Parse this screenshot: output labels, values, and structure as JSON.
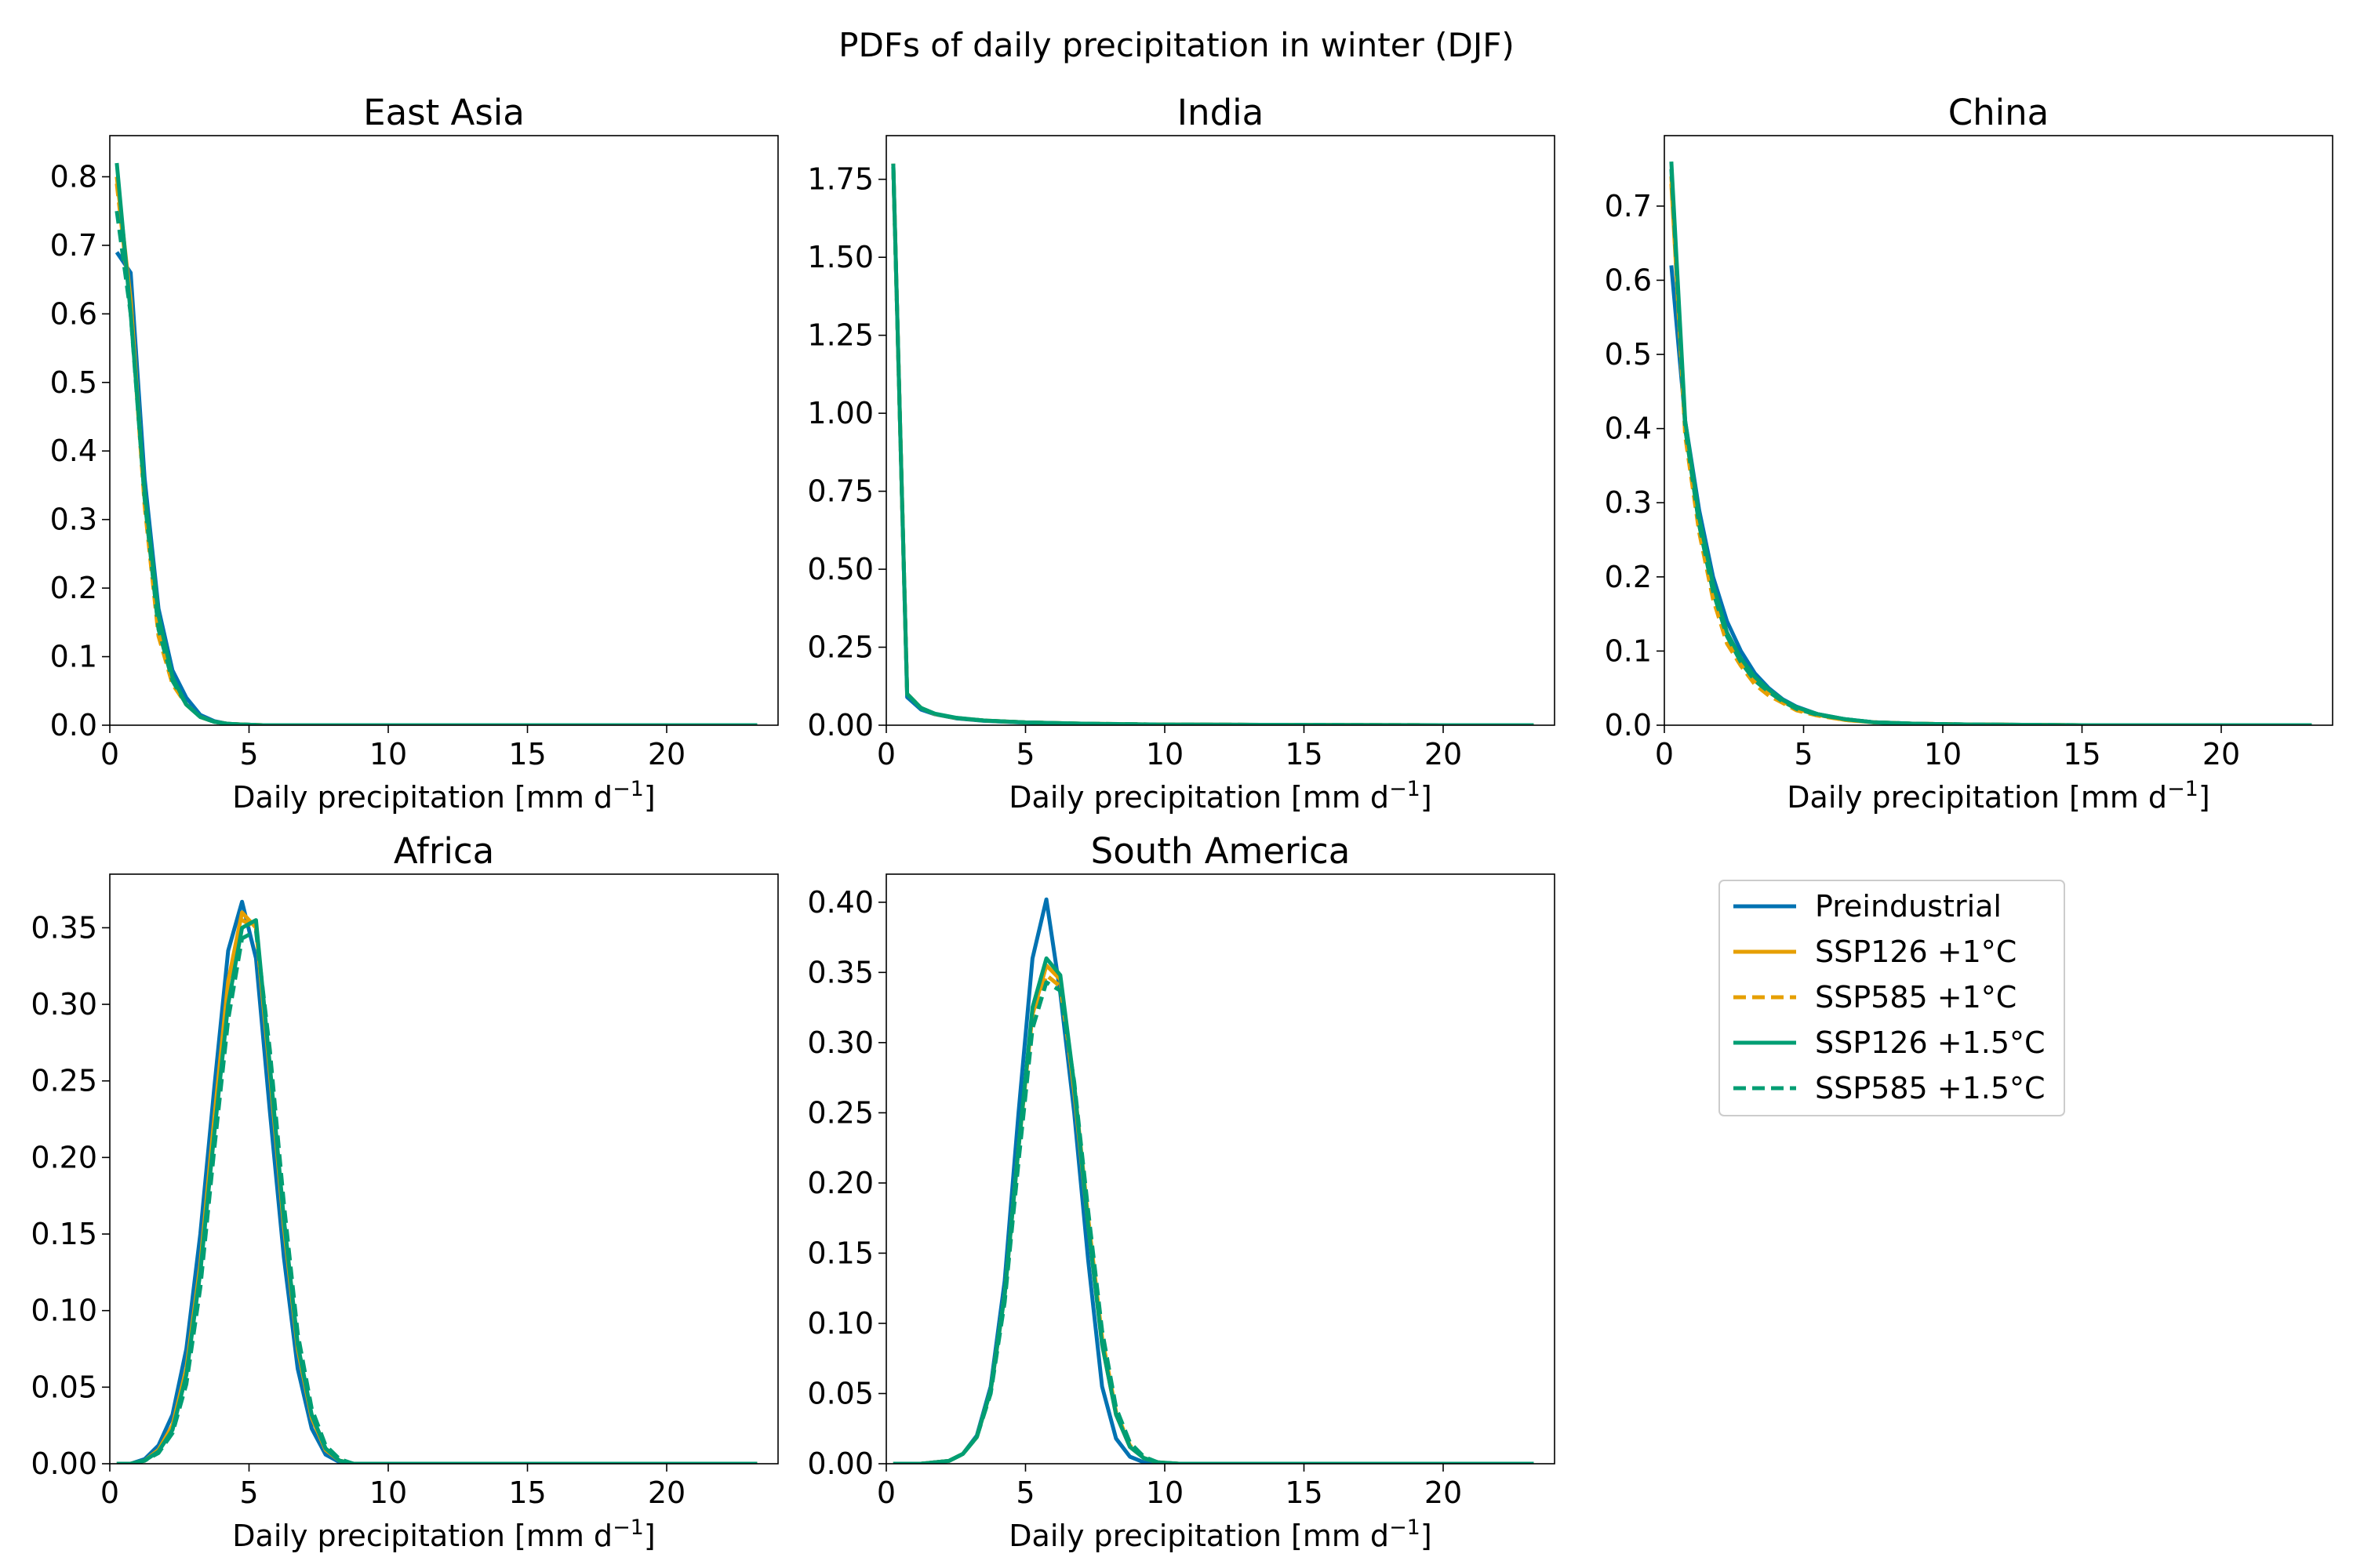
{
  "figure_title": "PDFs of daily precipitation in winter (DJF)",
  "legend": [
    {
      "name": "Preindustrial",
      "color": "#0072B2",
      "dash": "solid"
    },
    {
      "name": "SSP126 +1°C",
      "color": "#E69F00",
      "dash": "solid"
    },
    {
      "name": "SSP585 +1°C",
      "color": "#E69F00",
      "dash": "dashed"
    },
    {
      "name": "SSP126 +1.5°C",
      "color": "#009E73",
      "dash": "solid"
    },
    {
      "name": "SSP585 +1.5°C",
      "color": "#009E73",
      "dash": "dashed"
    }
  ],
  "chart_data": [
    {
      "type": "line",
      "title": "East Asia",
      "xlabel": "Daily precipitation [mm d−1]",
      "xlim": [
        0,
        24
      ],
      "ylim": [
        0,
        0.86
      ],
      "xticks": [
        0,
        5,
        10,
        15,
        20
      ],
      "yticks": [
        "0.0",
        "0.1",
        "0.2",
        "0.3",
        "0.4",
        "0.5",
        "0.6",
        "0.7",
        "0.8"
      ],
      "x": [
        0.25,
        0.75,
        1.25,
        1.75,
        2.25,
        2.75,
        3.25,
        3.75,
        4.25,
        4.75,
        5.5,
        7,
        10,
        15,
        20,
        23.25
      ],
      "series": [
        {
          "name": "Preindustrial",
          "values": [
            0.69,
            0.66,
            0.36,
            0.17,
            0.08,
            0.04,
            0.015,
            0.006,
            0.002,
            0.001,
            0,
            0,
            0,
            0,
            0,
            0
          ]
        },
        {
          "name": "SSP126 +1°C",
          "values": [
            0.8,
            0.62,
            0.33,
            0.14,
            0.065,
            0.03,
            0.012,
            0.005,
            0.002,
            0.001,
            0,
            0,
            0,
            0,
            0,
            0
          ]
        },
        {
          "name": "SSP585 +1°C",
          "values": [
            0.79,
            0.61,
            0.32,
            0.13,
            0.06,
            0.03,
            0.012,
            0.005,
            0.002,
            0.001,
            0,
            0,
            0,
            0,
            0,
            0
          ]
        },
        {
          "name": "SSP126 +1.5°C",
          "values": [
            0.82,
            0.6,
            0.34,
            0.16,
            0.07,
            0.03,
            0.012,
            0.005,
            0.002,
            0.001,
            0,
            0,
            0,
            0,
            0,
            0
          ]
        },
        {
          "name": "SSP585 +1.5°C",
          "values": [
            0.75,
            0.6,
            0.33,
            0.14,
            0.065,
            0.03,
            0.012,
            0.005,
            0.002,
            0.001,
            0,
            0,
            0,
            0,
            0,
            0
          ]
        }
      ]
    },
    {
      "type": "line",
      "title": "India",
      "xlabel": "Daily precipitation [mm d−1]",
      "xlim": [
        0,
        24
      ],
      "ylim": [
        0,
        1.89
      ],
      "xticks": [
        0,
        5,
        10,
        15,
        20
      ],
      "yticks": [
        "0.00",
        "0.25",
        "0.50",
        "0.75",
        "1.00",
        "1.25",
        "1.50",
        "1.75"
      ],
      "x": [
        0.25,
        0.75,
        1.25,
        1.75,
        2.5,
        3.5,
        5,
        7,
        10,
        15,
        20,
        23.25
      ],
      "series": [
        {
          "name": "Preindustrial",
          "values": [
            1.8,
            0.09,
            0.05,
            0.035,
            0.022,
            0.014,
            0.008,
            0.004,
            0.002,
            0.001,
            0,
            0
          ]
        },
        {
          "name": "SSP126 +1°C",
          "values": [
            1.8,
            0.1,
            0.055,
            0.036,
            0.023,
            0.015,
            0.009,
            0.005,
            0.002,
            0.001,
            0,
            0
          ]
        },
        {
          "name": "SSP585 +1°C",
          "values": [
            1.79,
            0.1,
            0.055,
            0.036,
            0.023,
            0.015,
            0.009,
            0.005,
            0.002,
            0.001,
            0,
            0
          ]
        },
        {
          "name": "SSP126 +1.5°C",
          "values": [
            1.8,
            0.1,
            0.055,
            0.037,
            0.024,
            0.015,
            0.009,
            0.005,
            0.002,
            0.001,
            0,
            0
          ]
        },
        {
          "name": "SSP585 +1.5°C",
          "values": [
            1.79,
            0.1,
            0.055,
            0.036,
            0.023,
            0.015,
            0.009,
            0.005,
            0.002,
            0.001,
            0,
            0
          ]
        }
      ]
    },
    {
      "type": "line",
      "title": "China",
      "xlabel": "Daily precipitation [mm d−1]",
      "xlim": [
        0,
        24
      ],
      "ylim": [
        0,
        0.795
      ],
      "xticks": [
        0,
        5,
        10,
        15,
        20
      ],
      "yticks": [
        "0.0",
        "0.1",
        "0.2",
        "0.3",
        "0.4",
        "0.5",
        "0.6",
        "0.7"
      ],
      "x": [
        0.25,
        0.75,
        1.25,
        1.75,
        2.25,
        2.75,
        3.25,
        3.75,
        4.25,
        4.75,
        5.5,
        6.5,
        7.5,
        9,
        11,
        15,
        20,
        23.25
      ],
      "series": [
        {
          "name": "Preindustrial",
          "values": [
            0.62,
            0.41,
            0.29,
            0.2,
            0.14,
            0.1,
            0.07,
            0.05,
            0.035,
            0.025,
            0.015,
            0.008,
            0.004,
            0.002,
            0.001,
            0,
            0,
            0
          ]
        },
        {
          "name": "SSP126 +1°C",
          "values": [
            0.73,
            0.4,
            0.27,
            0.18,
            0.12,
            0.085,
            0.06,
            0.045,
            0.032,
            0.022,
            0.014,
            0.007,
            0.004,
            0.002,
            0.001,
            0,
            0,
            0
          ]
        },
        {
          "name": "SSP585 +1°C",
          "values": [
            0.74,
            0.39,
            0.26,
            0.17,
            0.11,
            0.08,
            0.055,
            0.04,
            0.03,
            0.02,
            0.013,
            0.007,
            0.004,
            0.002,
            0.001,
            0,
            0,
            0
          ]
        },
        {
          "name": "SSP126 +1.5°C",
          "values": [
            0.76,
            0.41,
            0.28,
            0.19,
            0.125,
            0.09,
            0.065,
            0.048,
            0.034,
            0.024,
            0.015,
            0.008,
            0.004,
            0.002,
            0.001,
            0,
            0,
            0
          ]
        },
        {
          "name": "SSP585 +1.5°C",
          "values": [
            0.75,
            0.4,
            0.27,
            0.18,
            0.12,
            0.085,
            0.06,
            0.045,
            0.032,
            0.022,
            0.014,
            0.008,
            0.004,
            0.002,
            0.001,
            0,
            0,
            0
          ]
        }
      ]
    },
    {
      "type": "line",
      "title": "Africa",
      "xlabel": "Daily precipitation [mm d−1]",
      "xlim": [
        0,
        24
      ],
      "ylim": [
        0,
        0.385
      ],
      "xticks": [
        0,
        5,
        10,
        15,
        20
      ],
      "yticks": [
        "0.00",
        "0.05",
        "0.10",
        "0.15",
        "0.20",
        "0.25",
        "0.30",
        "0.35"
      ],
      "x": [
        0.25,
        0.75,
        1.25,
        1.75,
        2.25,
        2.75,
        3.25,
        3.75,
        4.25,
        4.75,
        5.25,
        5.75,
        6.25,
        6.75,
        7.25,
        7.75,
        8.25,
        8.75,
        9.5,
        11,
        15,
        20,
        23.25
      ],
      "series": [
        {
          "name": "Preindustrial",
          "values": [
            0,
            0,
            0.003,
            0.012,
            0.032,
            0.075,
            0.15,
            0.245,
            0.335,
            0.367,
            0.33,
            0.23,
            0.135,
            0.062,
            0.023,
            0.006,
            0.001,
            0,
            0,
            0,
            0,
            0,
            0
          ]
        },
        {
          "name": "SSP126 +1°C",
          "values": [
            0,
            0,
            0.002,
            0.009,
            0.025,
            0.062,
            0.13,
            0.225,
            0.315,
            0.36,
            0.35,
            0.255,
            0.155,
            0.075,
            0.03,
            0.009,
            0.002,
            0,
            0,
            0,
            0,
            0,
            0
          ]
        },
        {
          "name": "SSP585 +1°C",
          "values": [
            0,
            0,
            0.002,
            0.008,
            0.023,
            0.058,
            0.125,
            0.22,
            0.31,
            0.355,
            0.35,
            0.26,
            0.16,
            0.078,
            0.032,
            0.01,
            0.002,
            0,
            0,
            0,
            0,
            0,
            0
          ]
        },
        {
          "name": "SSP126 +1.5°C",
          "values": [
            0,
            0,
            0.002,
            0.008,
            0.022,
            0.058,
            0.125,
            0.215,
            0.3,
            0.35,
            0.355,
            0.26,
            0.16,
            0.078,
            0.032,
            0.01,
            0.002,
            0,
            0,
            0,
            0,
            0,
            0
          ]
        },
        {
          "name": "SSP585 +1.5°C",
          "values": [
            0,
            0,
            0.002,
            0.007,
            0.02,
            0.052,
            0.115,
            0.205,
            0.29,
            0.343,
            0.348,
            0.27,
            0.17,
            0.085,
            0.036,
            0.012,
            0.003,
            0,
            0,
            0,
            0,
            0,
            0
          ]
        }
      ]
    },
    {
      "type": "line",
      "title": "South America",
      "xlabel": "Daily precipitation [mm d−1]",
      "xlim": [
        0,
        24
      ],
      "ylim": [
        0,
        0.42
      ],
      "xticks": [
        0,
        5,
        10,
        15,
        20
      ],
      "yticks": [
        "0.00",
        "0.05",
        "0.10",
        "0.15",
        "0.20",
        "0.25",
        "0.30",
        "0.35",
        "0.40"
      ],
      "x": [
        0.25,
        1.25,
        2.25,
        2.75,
        3.25,
        3.75,
        4.25,
        4.75,
        5.25,
        5.75,
        6.25,
        6.75,
        7.25,
        7.75,
        8.25,
        8.75,
        9.25,
        9.75,
        10.5,
        12,
        15,
        20,
        23.25
      ],
      "series": [
        {
          "name": "Preindustrial",
          "values": [
            0,
            0,
            0.002,
            0.007,
            0.02,
            0.055,
            0.13,
            0.25,
            0.36,
            0.402,
            0.335,
            0.25,
            0.145,
            0.055,
            0.018,
            0.005,
            0.001,
            0,
            0,
            0,
            0,
            0,
            0
          ]
        },
        {
          "name": "SSP126 +1°C",
          "values": [
            0,
            0,
            0.002,
            0.007,
            0.019,
            0.052,
            0.12,
            0.225,
            0.32,
            0.355,
            0.345,
            0.265,
            0.17,
            0.085,
            0.035,
            0.012,
            0.004,
            0.001,
            0,
            0,
            0,
            0,
            0
          ]
        },
        {
          "name": "SSP585 +1°C",
          "values": [
            0,
            0,
            0.002,
            0.007,
            0.019,
            0.052,
            0.12,
            0.22,
            0.315,
            0.348,
            0.34,
            0.27,
            0.175,
            0.09,
            0.037,
            0.013,
            0.004,
            0.001,
            0,
            0,
            0,
            0,
            0
          ]
        },
        {
          "name": "SSP126 +1.5°C",
          "values": [
            0,
            0,
            0.002,
            0.007,
            0.019,
            0.052,
            0.12,
            0.225,
            0.325,
            0.36,
            0.348,
            0.27,
            0.17,
            0.085,
            0.035,
            0.012,
            0.004,
            0.001,
            0,
            0,
            0,
            0,
            0
          ]
        },
        {
          "name": "SSP585 +1.5°C",
          "values": [
            0,
            0,
            0.002,
            0.007,
            0.019,
            0.05,
            0.115,
            0.215,
            0.31,
            0.343,
            0.337,
            0.272,
            0.18,
            0.095,
            0.04,
            0.015,
            0.005,
            0.001,
            0,
            0,
            0,
            0,
            0
          ]
        }
      ]
    }
  ]
}
